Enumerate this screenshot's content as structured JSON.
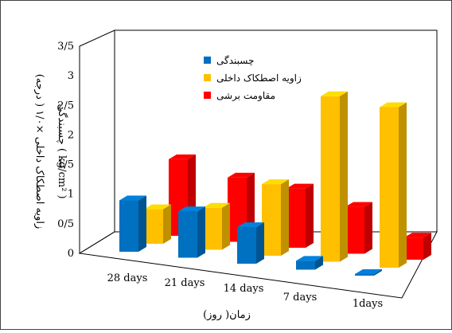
{
  "chart_data": {
    "type": "bar",
    "title": "",
    "xlabel": "زمان( روز)",
    "ylabel_lines": [
      "زاویه اصطکاک داخلی ×۱/۰ ( درجه)",
      "چسبندگی ( kg/cm² )"
    ],
    "categories": [
      "28 days",
      "21 days",
      "14 days",
      "7 days",
      "1days"
    ],
    "ylim": [
      0,
      3.5
    ],
    "y_ticks": [
      "0",
      "0/5",
      "1",
      "1/5",
      "2",
      "2/5",
      "3",
      "3/5"
    ],
    "grid": false,
    "legend_position": "top-left (inside plot)",
    "series": [
      {
        "name": "چسبندگی",
        "color": "#0070C0",
        "values": [
          1.04,
          0.94,
          0.74,
          0.18,
          0.03
        ]
      },
      {
        "name": "زاویه اصطکاک داخلی",
        "color": "#FFC000",
        "values": [
          0.7,
          0.85,
          1.45,
          3.35,
          3.25
        ]
      },
      {
        "name": "مقاومت برشی",
        "color": "#FF0000",
        "values": [
          1.55,
          1.3,
          1.2,
          0.95,
          0.45
        ]
      }
    ]
  }
}
